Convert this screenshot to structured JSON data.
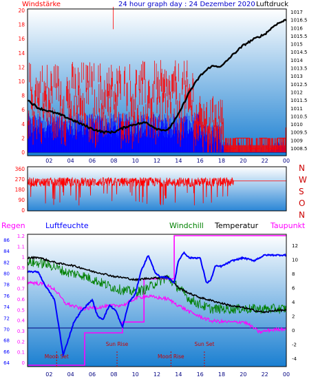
{
  "header": {
    "left_title": "Windstärke",
    "center_title": "24 hour graph day : 24 Dezember 2020",
    "right_title": "Luftdruck"
  },
  "colors": {
    "red": "#ff0000",
    "blue": "#0000ff",
    "green": "#008000",
    "black": "#000000",
    "magenta": "#ff00ff",
    "gradient_top": "#ffffff",
    "gradient_bottom": "#1a7fd1",
    "navy_axis": "#000080"
  },
  "wind_panel": {
    "left_ticks": [
      "20",
      "18",
      "16",
      "14",
      "12",
      "10",
      "8",
      "6",
      "4",
      "2",
      "0"
    ],
    "right_ticks": [
      "1017",
      "1016.5",
      "1016",
      "1015.5",
      "1015",
      "1014.5",
      "1014",
      "1013.5",
      "1013",
      "1012.5",
      "1012",
      "1011.5",
      "1011",
      "1010.5",
      "1010",
      "1009.5",
      "1009",
      "1008.5"
    ],
    "x_ticks": [
      "02",
      "04",
      "06",
      "08",
      "10",
      "12",
      "14",
      "16",
      "18",
      "20",
      "22",
      "00"
    ]
  },
  "direction_panel": {
    "left_ticks": [
      "360",
      "270",
      "180",
      "90",
      "0"
    ],
    "compass": [
      "N",
      "W",
      "S",
      "O",
      "N"
    ]
  },
  "climate_panel": {
    "legend": {
      "regen": "Regen",
      "luftfeuchte": "Luftfeuchte",
      "windchill": "Windchill",
      "temperatur": "Temperatur",
      "taupunkt": "Taupunkt"
    },
    "humidity_ticks": [
      "86",
      "84",
      "82",
      "80",
      "78",
      "76",
      "74",
      "72",
      "70",
      "68",
      "66",
      "64"
    ],
    "rain_ticks": [
      "1.2",
      "1.1",
      "1",
      "0.9",
      "0.8",
      "0.7",
      "0.6",
      "0.5",
      "0.4",
      "0.3",
      "0.2",
      "0.1",
      "0"
    ],
    "temp_ticks": [
      "12",
      "10",
      "8",
      "6",
      "4",
      "2",
      "0",
      "-2",
      "-4"
    ],
    "x_ticks": [
      "02",
      "04",
      "06",
      "08",
      "10",
      "12",
      "14",
      "16",
      "18",
      "20",
      "22",
      "00"
    ],
    "events": [
      {
        "label": "Moon Set",
        "hour": 2.7
      },
      {
        "label": "Sun Rise",
        "hour": 8.3
      },
      {
        "label": "Moon Rise",
        "hour": 13.3
      },
      {
        "label": "Sun Set",
        "hour": 16.4
      }
    ]
  }
}
